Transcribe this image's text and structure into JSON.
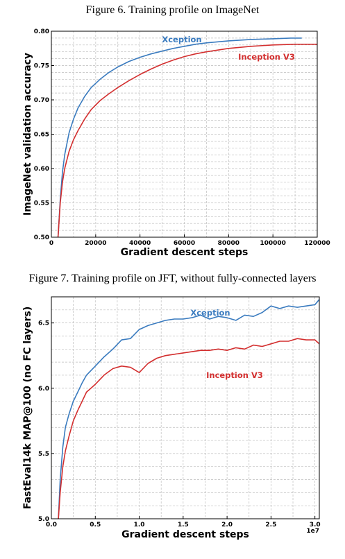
{
  "figure6": {
    "caption": "Figure 6. Training profile on ImageNet"
  },
  "figure7": {
    "caption": "Figure 7. Training profile on JFT, without fully-connected layers"
  },
  "chart_data": [
    {
      "type": "line",
      "xlabel": "Gradient descent steps",
      "ylabel": "ImageNet validation accuracy",
      "xlim": [
        0,
        120000
      ],
      "ylim": [
        0.5,
        0.8
      ],
      "xticks": [
        0,
        20000,
        40000,
        60000,
        80000,
        100000,
        120000
      ],
      "xtick_labels": [
        "0",
        "20000",
        "40000",
        "60000",
        "80000",
        "100000",
        "120000"
      ],
      "yticks": [
        0.5,
        0.55,
        0.6,
        0.65,
        0.7,
        0.75,
        0.8
      ],
      "ytick_labels": [
        "0.50",
        "0.55",
        "0.60",
        "0.65",
        "0.70",
        "0.75",
        "0.80"
      ],
      "grid": true,
      "series": [
        {
          "name": "Xception",
          "color": "#3a7bbf",
          "x": [
            3000,
            4000,
            5000,
            6000,
            8000,
            10000,
            12000,
            15000,
            18000,
            22000,
            26000,
            30000,
            35000,
            40000,
            45000,
            50000,
            55000,
            60000,
            65000,
            70000,
            80000,
            90000,
            100000,
            108000,
            113000
          ],
          "y": [
            0.5,
            0.555,
            0.595,
            0.62,
            0.652,
            0.672,
            0.688,
            0.705,
            0.718,
            0.73,
            0.74,
            0.748,
            0.756,
            0.762,
            0.767,
            0.771,
            0.775,
            0.778,
            0.781,
            0.783,
            0.786,
            0.788,
            0.789,
            0.79,
            0.79
          ]
        },
        {
          "name": "Inception V3",
          "color": "#d32f2f",
          "x": [
            3000,
            4000,
            5000,
            6000,
            8000,
            10000,
            12000,
            15000,
            18000,
            22000,
            26000,
            30000,
            35000,
            40000,
            45000,
            50000,
            55000,
            60000,
            65000,
            70000,
            80000,
            90000,
            100000,
            110000,
            120000
          ],
          "y": [
            0.5,
            0.55,
            0.58,
            0.6,
            0.625,
            0.642,
            0.655,
            0.672,
            0.686,
            0.699,
            0.709,
            0.718,
            0.728,
            0.737,
            0.745,
            0.752,
            0.758,
            0.763,
            0.767,
            0.77,
            0.775,
            0.778,
            0.78,
            0.781,
            0.781
          ]
        }
      ]
    },
    {
      "type": "line",
      "xlabel": "Gradient descent steps",
      "ylabel": "FastEval14k MAP@100 (no FC layers)",
      "x_scale_label": "1e7",
      "xlim": [
        0,
        30500000
      ],
      "ylim": [
        5.0,
        6.7
      ],
      "xticks": [
        0,
        5000000,
        10000000,
        15000000,
        20000000,
        25000000,
        30000000
      ],
      "xtick_labels": [
        "0.0",
        "0.5",
        "1.0",
        "1.5",
        "2.0",
        "2.5",
        "3.0"
      ],
      "yticks": [
        5.0,
        5.5,
        6.0,
        6.5
      ],
      "ytick_labels": [
        "5.0",
        "5.5",
        "6.0",
        "6.5"
      ],
      "grid": true,
      "series": [
        {
          "name": "Xception",
          "color": "#3a7bbf",
          "x": [
            800000,
            1000000,
            1300000,
            1600000,
            2000000,
            2500000,
            3000000,
            3500000,
            4000000,
            5000000,
            6000000,
            7000000,
            8000000,
            9000000,
            10000000,
            11000000,
            12000000,
            13000000,
            14000000,
            15000000,
            16000000,
            17000000,
            18000000,
            19000000,
            20000000,
            21000000,
            22000000,
            23000000,
            24000000,
            25000000,
            26000000,
            27000000,
            28000000,
            29000000,
            30000000,
            30500000
          ],
          "y": [
            5.0,
            5.3,
            5.55,
            5.7,
            5.8,
            5.9,
            5.97,
            6.04,
            6.1,
            6.17,
            6.24,
            6.3,
            6.37,
            6.38,
            6.45,
            6.48,
            6.5,
            6.52,
            6.53,
            6.53,
            6.54,
            6.56,
            6.53,
            6.55,
            6.54,
            6.52,
            6.56,
            6.55,
            6.58,
            6.63,
            6.61,
            6.63,
            6.62,
            6.63,
            6.64,
            6.68
          ]
        },
        {
          "name": "Inception V3",
          "color": "#d32f2f",
          "x": [
            800000,
            1000000,
            1300000,
            1600000,
            2000000,
            2500000,
            3000000,
            3500000,
            4000000,
            5000000,
            6000000,
            7000000,
            8000000,
            9000000,
            10000000,
            11000000,
            12000000,
            13000000,
            14000000,
            15000000,
            16000000,
            17000000,
            18000000,
            19000000,
            20000000,
            21000000,
            22000000,
            23000000,
            24000000,
            25000000,
            26000000,
            27000000,
            28000000,
            29000000,
            30000000,
            30500000
          ],
          "y": [
            5.0,
            5.2,
            5.4,
            5.52,
            5.63,
            5.75,
            5.83,
            5.9,
            5.97,
            6.03,
            6.1,
            6.15,
            6.17,
            6.16,
            6.12,
            6.19,
            6.23,
            6.25,
            6.26,
            6.27,
            6.28,
            6.29,
            6.29,
            6.3,
            6.29,
            6.31,
            6.3,
            6.33,
            6.32,
            6.34,
            6.36,
            6.36,
            6.38,
            6.37,
            6.37,
            6.34
          ]
        }
      ]
    }
  ]
}
